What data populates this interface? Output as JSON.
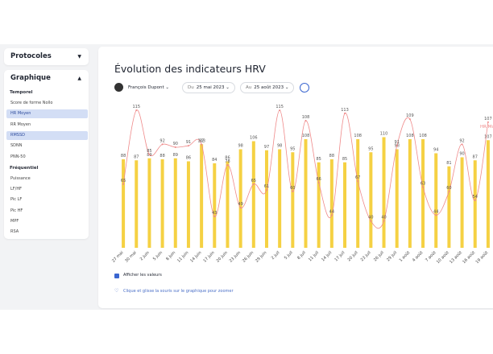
{
  "sidebar": {
    "protocols": "Protocoles",
    "graph": "Graphique",
    "groups": [
      {
        "title": "Temporel",
        "items": [
          "Score de forme Nollo",
          "HR Moyen",
          "RR Moyen",
          "RMSSD",
          "SDNN",
          "PNN-50"
        ]
      },
      {
        "title": "Fréquentiel",
        "items": [
          "Puissance",
          "LF/HF",
          "Pic LF",
          "Pic HF",
          "MPF",
          "RSA"
        ]
      }
    ]
  },
  "header": {
    "title": "Évolution des indicateurs HRV",
    "user": "François Dupont",
    "from_label": "Du",
    "from": "25 mai 2023",
    "to_label": "Au",
    "to": "25 août 2023"
  },
  "footer": {
    "show_values": "Afficher les valeurs",
    "hint": "Clique et glisse la souris sur le graphique pour zoomer"
  },
  "chart_data": {
    "type": "bar-line",
    "categories": [
      "27 mai",
      "30 mai",
      "2 juin",
      "5 juin",
      "8 juin",
      "11 juin",
      "14 juin",
      "17 juin",
      "20 juin",
      "23 juin",
      "26 juin",
      "29 juin",
      "2 juil",
      "5 juil",
      "8 juil",
      "11 juil",
      "14 juil",
      "17 juil",
      "20 juil",
      "23 juil",
      "26 juil",
      "29 juil",
      "1 août",
      "4 août",
      "7 août",
      "10 août",
      "13 août",
      "16 août",
      "19 août"
    ],
    "ylim": [
      0,
      140
    ],
    "y2lim": [
      30,
      120
    ],
    "series": [
      {
        "name": "RMSSD",
        "color": "#f5d143",
        "values": [
          88,
          87,
          89,
          88,
          89,
          86,
          103,
          84,
          86,
          98,
          106,
          97,
          98,
          95,
          108,
          85,
          88,
          85,
          108,
          95,
          110,
          98,
          108,
          108,
          94,
          81,
          90,
          87,
          107
        ]
      },
      {
        "name": "HR Moyen",
        "color": "#ef8a8a",
        "axis": "y2",
        "values": [
          65,
          115,
          85,
          92,
          90,
          91,
          92,
          43,
          78,
          49,
          65,
          61,
          115,
          60,
          108,
          66,
          44,
          113,
          67,
          40,
          40,
          91,
          109,
          63,
          44,
          60,
          92,
          54,
          107
        ]
      }
    ]
  }
}
